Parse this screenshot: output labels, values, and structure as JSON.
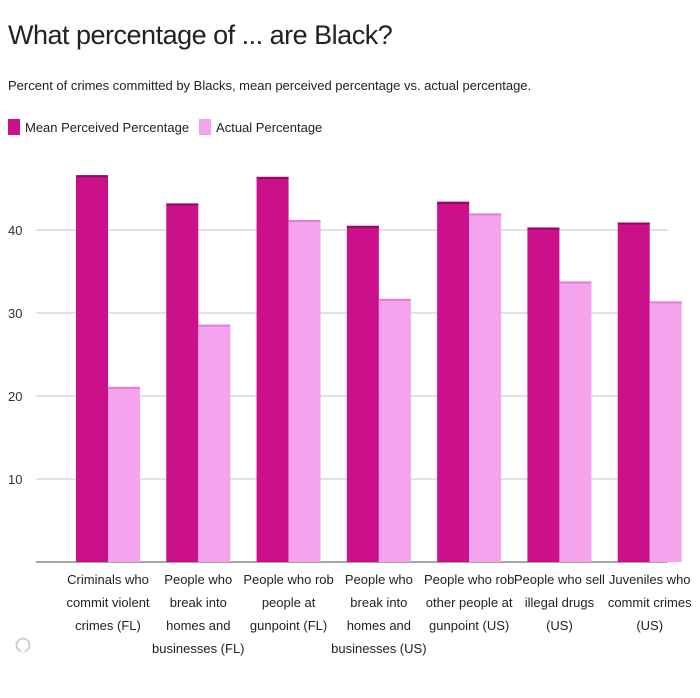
{
  "title": "What percentage of ... are Black?",
  "subtitle": "Percent of crimes committed by Blacks, mean perceived percentage vs. actual percentage.",
  "colors": {
    "perceived": "#cc0f8a",
    "actual": "#f6a3ee",
    "grid": "#d8d8d8",
    "axis": "#888888"
  },
  "chart_data": {
    "type": "bar",
    "categories": [
      [
        "Criminals who",
        "commit violent",
        "crimes (FL)"
      ],
      [
        "People who",
        "break into",
        "homes and",
        "businesses (FL)"
      ],
      [
        "People who rob",
        "people at",
        "gunpoint (FL)"
      ],
      [
        "People who",
        "break into",
        "homes and",
        "businesses (US)"
      ],
      [
        "People who rob",
        "other people at",
        "gunpoint (US)"
      ],
      [
        "People who sell",
        "illegal drugs",
        "(US)"
      ],
      [
        "Juveniles who",
        "commit crimes",
        "(US)"
      ]
    ],
    "series": [
      {
        "name": "Mean Perceived Percentage",
        "values": [
          46.6,
          43.2,
          46.4,
          40.5,
          43.4,
          40.3,
          40.9
        ]
      },
      {
        "name": "Actual Percentage",
        "values": [
          21.1,
          28.6,
          41.2,
          31.7,
          42.0,
          33.8,
          31.4
        ]
      }
    ],
    "yticks": [
      10,
      20,
      30,
      40
    ],
    "ylim": [
      0,
      50
    ],
    "grid": true,
    "legend": "top-left"
  }
}
